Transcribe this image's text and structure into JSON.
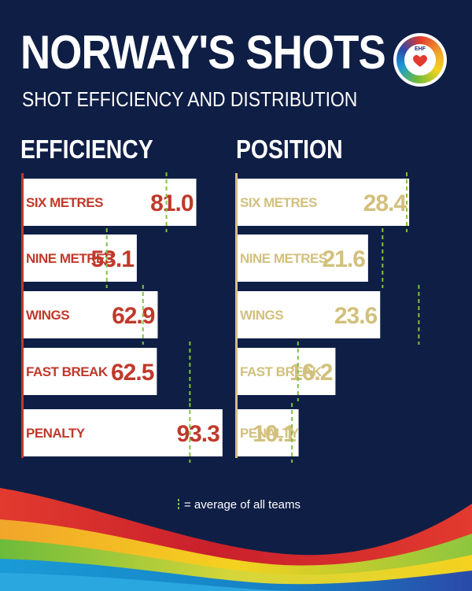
{
  "title": "NORWAY'S SHOTS",
  "subtitle": "SHOT EFFICIENCY AND DISTRIBUTION",
  "logo_text": "EHF",
  "legend_text": "= average of all teams",
  "colors": {
    "background": "#0f1e45",
    "efficiency": "#c0392b",
    "position": "#d2c07c",
    "average": "#7fc241",
    "bar": "#ffffff"
  },
  "chart_data": [
    {
      "type": "bar",
      "title": "EFFICIENCY",
      "categories": [
        "SIX METRES",
        "NINE METRES",
        "WINGS",
        "FAST BREAK",
        "PENALTY"
      ],
      "values": [
        81.0,
        53.1,
        62.9,
        62.5,
        93.3
      ],
      "value_labels": [
        "81.0",
        "53.1",
        "62.9",
        "62.5",
        "93.3"
      ],
      "average_values": [
        67,
        39,
        56,
        78,
        78
      ]
    },
    {
      "type": "bar",
      "title": "POSITION",
      "categories": [
        "SIX METRES",
        "NINE METRES",
        "WINGS",
        "FAST BREAK",
        "PENALTY"
      ],
      "values": [
        28.4,
        21.6,
        23.6,
        16.2,
        10.1
      ],
      "value_labels": [
        "28.4",
        "21.6",
        "23.6",
        "16.2",
        "10.1"
      ],
      "average_values": [
        28,
        24,
        30,
        10,
        9
      ]
    }
  ]
}
